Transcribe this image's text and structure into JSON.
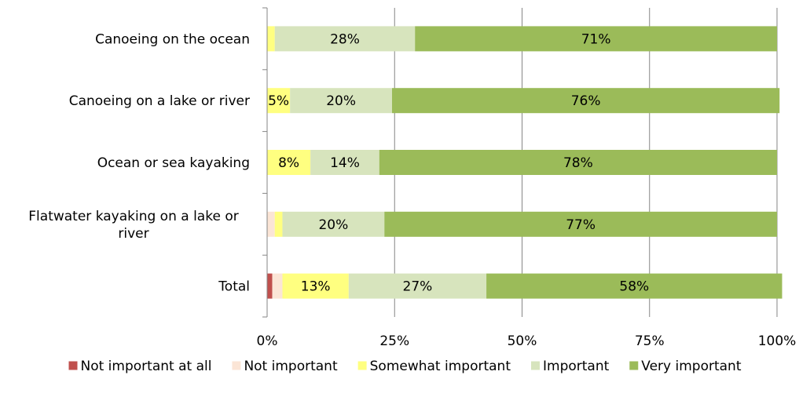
{
  "chart_data": {
    "type": "bar",
    "orientation": "horizontal",
    "stacked": true,
    "percent_stacked": true,
    "categories": [
      "Canoeing on the ocean",
      "Canoeing on a lake or river",
      "Ocean or sea kayaking",
      "Flatwater kayaking on a lake or river",
      "Total"
    ],
    "category_lines": [
      [
        "Canoeing on the ocean"
      ],
      [
        "Canoeing on a lake or river"
      ],
      [
        "Ocean or sea kayaking"
      ],
      [
        "Flatwater kayaking on a lake or",
        "river"
      ],
      [
        "Total"
      ]
    ],
    "series": [
      {
        "name": "Not important at all",
        "color": "#c0504d",
        "values": [
          0,
          0,
          0,
          0,
          1
        ],
        "labels": [
          "",
          "",
          "",
          "",
          ""
        ]
      },
      {
        "name": "Not important",
        "color": "#fbe5d6",
        "values": [
          0,
          0,
          0,
          1.5,
          2
        ],
        "labels": [
          "",
          "",
          "",
          "",
          ""
        ]
      },
      {
        "name": "Somewhat important",
        "color": "#ffff80",
        "values": [
          1.5,
          4.5,
          8.5,
          1.5,
          13
        ],
        "labels": [
          "",
          "5%",
          "8%",
          "",
          "13%"
        ]
      },
      {
        "name": "Important",
        "color": "#d7e4bd",
        "values": [
          27.5,
          20,
          13.5,
          20,
          27
        ],
        "labels": [
          "28%",
          "20%",
          "14%",
          "20%",
          "27%"
        ]
      },
      {
        "name": "Very important",
        "color": "#9bbb59",
        "values": [
          71,
          76,
          78,
          77,
          58
        ],
        "labels": [
          "71%",
          "76%",
          "78%",
          "77%",
          "58%"
        ]
      }
    ],
    "x_ticks": [
      "0%",
      "25%",
      "50%",
      "75%",
      "100%"
    ],
    "xlim": [
      0,
      100
    ],
    "grid": true,
    "legend_position": "bottom",
    "title": "",
    "xlabel": "",
    "ylabel": ""
  }
}
